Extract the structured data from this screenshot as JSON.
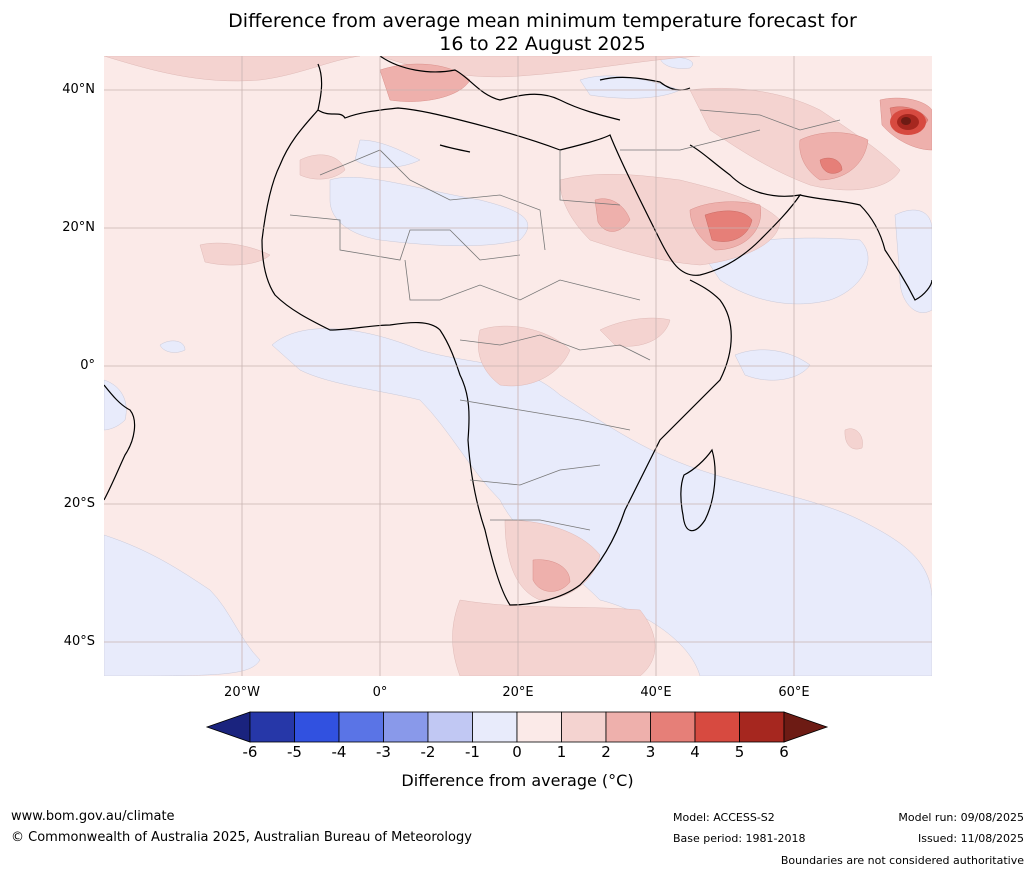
{
  "title": {
    "line1": "Difference from average mean minimum temperature forecast for",
    "line2": "16 to 22 August 2025"
  },
  "map": {
    "lat_labels": [
      "40°N",
      "20°N",
      "0°",
      "20°S",
      "40°S"
    ],
    "lon_labels": [
      "20°W",
      "0°",
      "20°E",
      "40°E",
      "60°E"
    ]
  },
  "colorbar": {
    "ticks": [
      "-6",
      "-5",
      "-4",
      "-3",
      "-2",
      "-1",
      "0",
      "1",
      "2",
      "3",
      "4",
      "5",
      "6"
    ],
    "colors": [
      "#1a237e",
      "#2637a8",
      "#3151e0",
      "#5a74e6",
      "#8999ea",
      "#c1c8f3",
      "#e8ebfb",
      "#fbeae8",
      "#f4d3d0",
      "#eeb0ac",
      "#e67f78",
      "#d74a40",
      "#a6271f",
      "#6d1b14"
    ],
    "title": "Difference from average (°C)"
  },
  "footer": {
    "website": "www.bom.gov.au/climate",
    "copyright": "© Commonwealth of Australia 2025, Australian Bureau of Meteorology",
    "model": "Model: ACCESS-S2",
    "base_period": "Base period: 1981-2018",
    "model_run": "Model run: 09/08/2025",
    "issued": "Issued: 11/08/2025",
    "disclaimer": "Boundaries are not considered authoritative"
  }
}
